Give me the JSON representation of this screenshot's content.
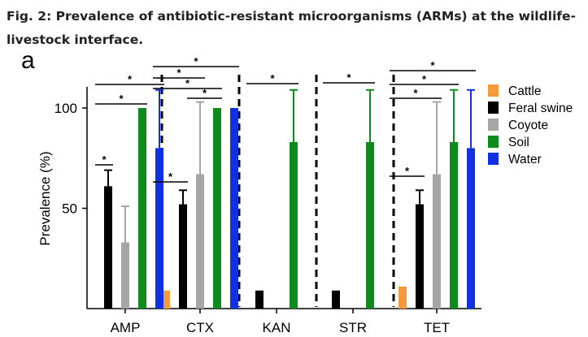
{
  "caption": {
    "line1": "Fig. 2: Prevalence of antibiotic-resistant microorganisms (ARMs) at the wildlife-",
    "line2": "livestock interface."
  },
  "panel_letter": "a",
  "chart_data": {
    "type": "bar",
    "title": "",
    "xlabel": "",
    "ylabel": "Prevalence (%)",
    "ylim": [
      0,
      110
    ],
    "yticks": [
      50,
      100
    ],
    "grid": false,
    "legend_position": "top-right",
    "categories": [
      "AMP",
      "CTX",
      "KAN",
      "STR",
      "TET"
    ],
    "series": [
      {
        "name": "Cattle",
        "color": "#f39a3c",
        "values": [
          0,
          9,
          0,
          0,
          11
        ],
        "err": [
          null,
          0,
          null,
          null,
          0
        ]
      },
      {
        "name": "Feral swine",
        "color": "#000000",
        "values": [
          61,
          52,
          9,
          9,
          52
        ],
        "err": [
          8,
          7,
          0,
          0,
          7
        ]
      },
      {
        "name": "Coyote",
        "color": "#a6a6a6",
        "values": [
          33,
          67,
          0,
          0,
          67
        ],
        "err": [
          18,
          36,
          null,
          null,
          36
        ]
      },
      {
        "name": "Soil",
        "color": "#0f8a1c",
        "values": [
          100,
          100,
          83,
          83,
          83
        ],
        "err": [
          0,
          0,
          26,
          26,
          26
        ]
      },
      {
        "name": "Water",
        "color": "#1030e6",
        "values": [
          80,
          100,
          0,
          0,
          80
        ],
        "err": [
          29,
          0,
          null,
          null,
          29
        ]
      }
    ],
    "significance": [
      {
        "category": "AMP",
        "from": "Feral swine",
        "to": "Feral swine",
        "label": "*"
      },
      {
        "category": "AMP",
        "from": "Feral swine",
        "to": "Soil",
        "label": "*"
      },
      {
        "category": "AMP",
        "from": "Feral swine",
        "to": "Water",
        "label": "*"
      },
      {
        "category": "CTX",
        "from": "Cattle",
        "to": "Feral swine",
        "label": "*"
      },
      {
        "category": "CTX",
        "from": "Coyote",
        "to": "Soil",
        "label": "*"
      },
      {
        "category": "CTX",
        "from": "Cattle",
        "to": "Soil",
        "label": "*"
      },
      {
        "category": "CTX",
        "from": "Cattle",
        "to": "Coyote",
        "label": "*"
      },
      {
        "category": "CTX",
        "from": "Cattle",
        "to": "Water",
        "label": "*"
      },
      {
        "category": "KAN",
        "from": "Feral swine",
        "to": "Soil",
        "label": "*"
      },
      {
        "category": "STR",
        "from": "Feral swine",
        "to": "Soil",
        "label": "*"
      },
      {
        "category": "TET",
        "from": "Cattle",
        "to": "Feral swine",
        "label": "*"
      },
      {
        "category": "TET",
        "from": "Cattle",
        "to": "Coyote",
        "label": "*"
      },
      {
        "category": "TET",
        "from": "Cattle",
        "to": "Soil",
        "label": "*"
      },
      {
        "category": "TET",
        "from": "Cattle",
        "to": "Water",
        "label": "*"
      }
    ]
  }
}
